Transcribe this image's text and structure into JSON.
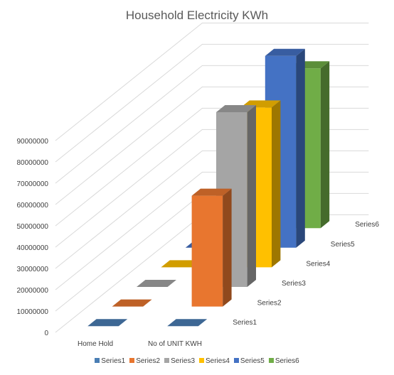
{
  "chart_data": {
    "type": "bar",
    "subtype": "3d-column",
    "title": "Household Electricity KWh",
    "xlabel": "",
    "ylabel": "",
    "categories": [
      "Home Hold",
      "No of UNIT KWH"
    ],
    "series": [
      {
        "name": "Series1",
        "color": "#4a7eb4",
        "values": [
          0,
          0
        ]
      },
      {
        "name": "Series2",
        "color": "#e8762f",
        "values": [
          0,
          52000000
        ]
      },
      {
        "name": "Series3",
        "color": "#a5a5a5",
        "values": [
          0,
          82000000
        ]
      },
      {
        "name": "Series4",
        "color": "#ffc000",
        "values": [
          0,
          75000000
        ]
      },
      {
        "name": "Series5",
        "color": "#4472c4",
        "values": [
          0,
          90000000
        ]
      },
      {
        "name": "Series6",
        "color": "#70ad47",
        "values": [
          0,
          75000000
        ]
      }
    ],
    "y_ticks": [
      "0",
      "10000000",
      "20000000",
      "30000000",
      "40000000",
      "50000000",
      "60000000",
      "70000000",
      "80000000",
      "90000000"
    ],
    "ylim": [
      0,
      90000000
    ],
    "grid": true,
    "legend_position": "bottom"
  }
}
